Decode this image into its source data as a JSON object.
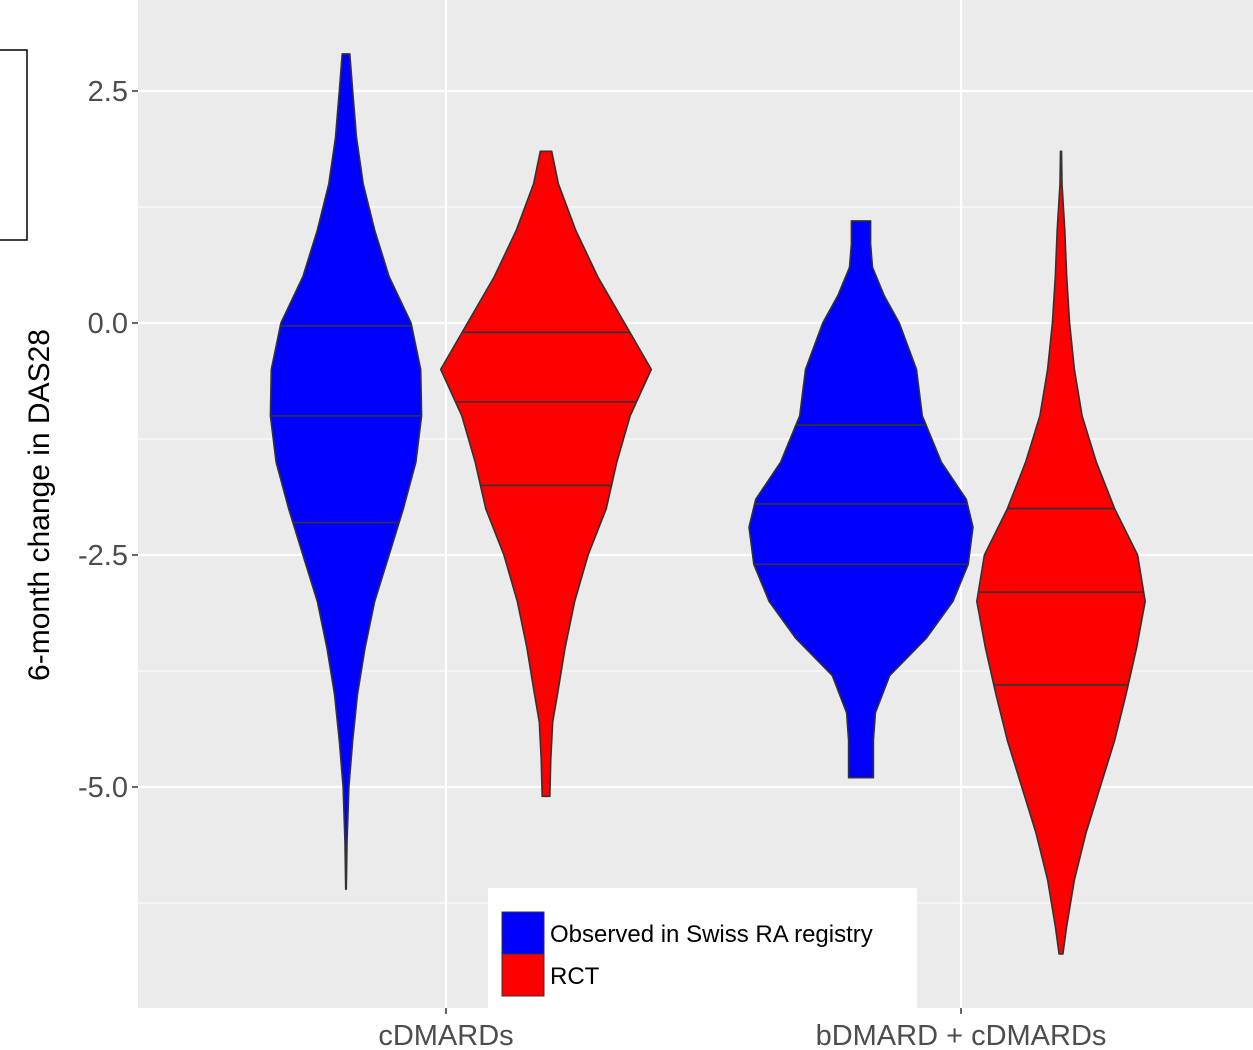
{
  "chart_data": {
    "type": "violin",
    "title": "",
    "xlabel": "",
    "ylabel": "6-month change in DAS28",
    "ylim": [
      -7.3,
      3.5
    ],
    "yticks": [
      2.5,
      0.0,
      -2.5,
      -5.0
    ],
    "ytick_labels": [
      "2.5",
      "0.0",
      "-2.5",
      "-5.0"
    ],
    "categories": [
      "cDMARDs",
      "bDMARD + cDMARDs"
    ],
    "grid": true,
    "legend_position": "bottom-center",
    "series": [
      {
        "name": "Observed in Swiss RA registry",
        "color": "#0000ff",
        "groups": [
          {
            "category": "cDMARDs",
            "min": -6.1,
            "max": 2.9,
            "quantiles": [
              -2.15,
              -1.0,
              -0.03
            ],
            "profile": [
              [
                -6.1,
                0.3
              ],
              [
                -5.6,
                1
              ],
              [
                -5.0,
                3
              ],
              [
                -4.5,
                7
              ],
              [
                -4.0,
                12
              ],
              [
                -3.5,
                20
              ],
              [
                -3.0,
                30
              ],
              [
                -2.5,
                45
              ],
              [
                -2.0,
                60
              ],
              [
                -1.5,
                73
              ],
              [
                -1.0,
                79
              ],
              [
                -0.5,
                78
              ],
              [
                0.0,
                68
              ],
              [
                0.5,
                45
              ],
              [
                1.0,
                30
              ],
              [
                1.5,
                18
              ],
              [
                2.0,
                11
              ],
              [
                2.5,
                7
              ],
              [
                2.9,
                4
              ]
            ]
          },
          {
            "category": "bDMARD + cDMARDs",
            "min": -4.9,
            "max": 1.1,
            "quantiles": [
              -2.6,
              -1.95,
              -1.1
            ],
            "profile": [
              [
                -4.9,
                13
              ],
              [
                -4.5,
                13
              ],
              [
                -4.2,
                15
              ],
              [
                -3.8,
                30
              ],
              [
                -3.4,
                68
              ],
              [
                -3.0,
                96
              ],
              [
                -2.6,
                112
              ],
              [
                -2.2,
                117
              ],
              [
                -1.9,
                110
              ],
              [
                -1.5,
                84
              ],
              [
                -1.0,
                64
              ],
              [
                -0.5,
                58
              ],
              [
                0.0,
                40
              ],
              [
                0.3,
                24
              ],
              [
                0.6,
                12
              ],
              [
                0.85,
                10
              ],
              [
                1.1,
                10
              ]
            ]
          }
        ]
      },
      {
        "name": "RCT",
        "color": "#ff0000",
        "groups": [
          {
            "category": "cDMARDs",
            "min": -5.1,
            "max": 1.85,
            "quantiles": [
              -1.75,
              -0.85,
              -0.1
            ],
            "profile": [
              [
                -5.1,
                4
              ],
              [
                -4.7,
                5
              ],
              [
                -4.3,
                7
              ],
              [
                -4.0,
                12
              ],
              [
                -3.5,
                20
              ],
              [
                -3.0,
                30
              ],
              [
                -2.5,
                44
              ],
              [
                -2.0,
                63
              ],
              [
                -1.5,
                74
              ],
              [
                -1.0,
                88
              ],
              [
                -0.5,
                110
              ],
              [
                0.0,
                82
              ],
              [
                0.5,
                54
              ],
              [
                1.0,
                31
              ],
              [
                1.5,
                13
              ],
              [
                1.85,
                6
              ]
            ]
          },
          {
            "category": "bDMARD + cDMARDs",
            "min": -6.8,
            "max": 1.85,
            "quantiles": [
              -3.9,
              -2.9,
              -2.0
            ],
            "profile": [
              [
                -6.8,
                2
              ],
              [
                -6.5,
                6
              ],
              [
                -6.0,
                14
              ],
              [
                -5.5,
                26
              ],
              [
                -5.0,
                41
              ],
              [
                -4.5,
                56
              ],
              [
                -4.0,
                68
              ],
              [
                -3.5,
                79
              ],
              [
                -3.0,
                88
              ],
              [
                -2.5,
                80
              ],
              [
                -2.0,
                56
              ],
              [
                -1.5,
                37
              ],
              [
                -1.0,
                22
              ],
              [
                -0.5,
                14
              ],
              [
                0.0,
                9
              ],
              [
                0.5,
                6
              ],
              [
                1.0,
                4
              ],
              [
                1.5,
                1
              ],
              [
                1.85,
                0.5
              ]
            ]
          }
        ]
      }
    ]
  }
}
